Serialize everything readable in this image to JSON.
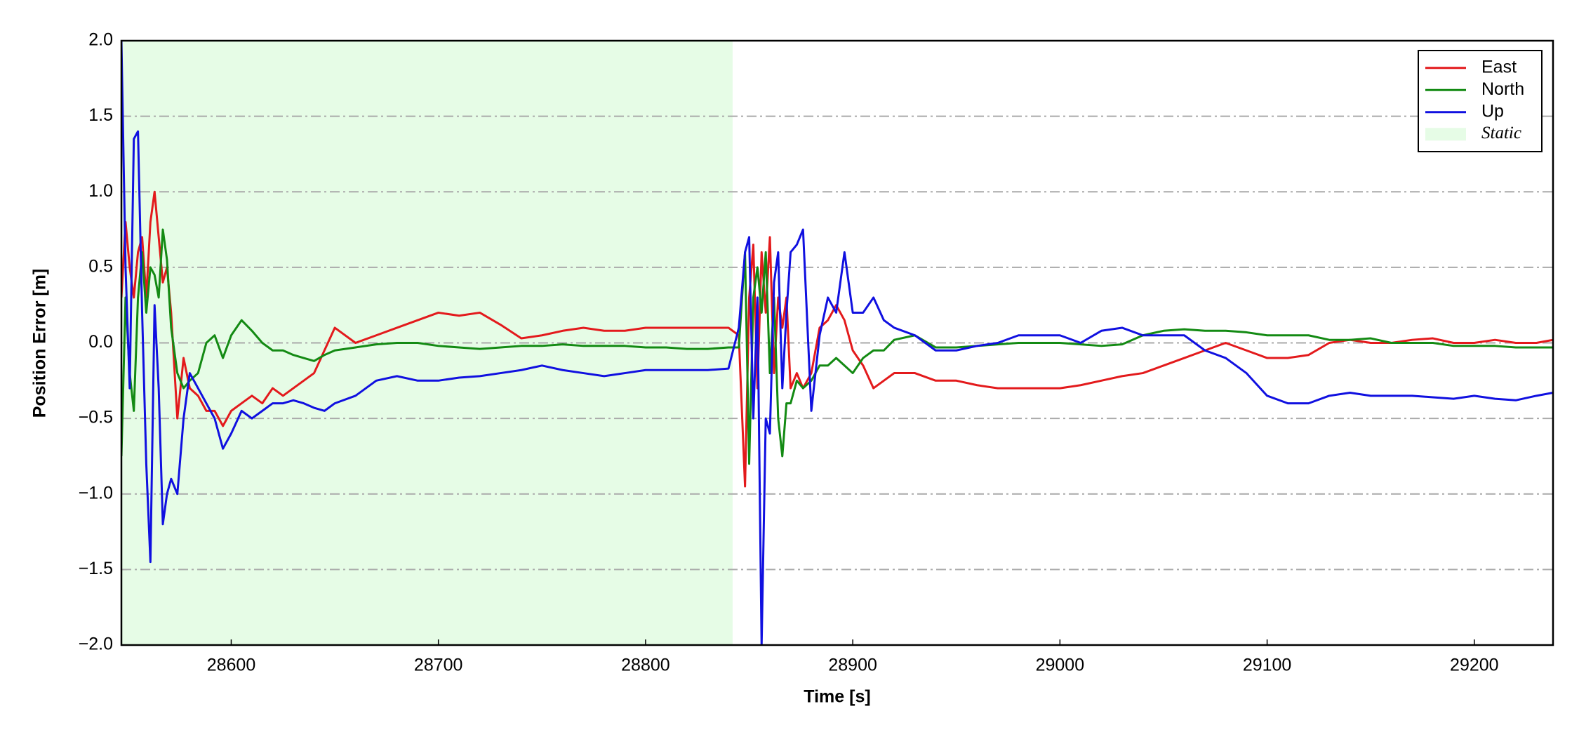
{
  "chart_data": {
    "type": "line",
    "x_label": "Time [s]",
    "y_label": "Position Error [m]",
    "xlim": [
      28547,
      29238
    ],
    "ylim": [
      -2,
      2
    ],
    "xticks": [
      28600,
      28700,
      28800,
      28900,
      29000,
      29100,
      29200
    ],
    "yticks": [
      {
        "value": -2,
        "label": "−2.0"
      },
      {
        "value": -1.5,
        "label": "−1.5"
      },
      {
        "value": -1,
        "label": "−1.0"
      },
      {
        "value": -0.5,
        "label": "−0.5"
      },
      {
        "value": 0,
        "label": "0.0"
      },
      {
        "value": 0.5,
        "label": "0.5"
      },
      {
        "value": 1,
        "label": "1.0"
      },
      {
        "value": 1.5,
        "label": "1.5"
      },
      {
        "value": 2,
        "label": "2.0"
      }
    ],
    "grid": "y",
    "legend": "upper right",
    "spans": [
      {
        "name": "Static",
        "start": 28547,
        "end": 28842,
        "color": "#e6fce6"
      }
    ],
    "x": [
      28547,
      28549,
      28551,
      28553,
      28555,
      28557,
      28559,
      28561,
      28563,
      28565,
      28567,
      28569,
      28571,
      28574,
      28577,
      28580,
      28584,
      28588,
      28592,
      28596,
      28600,
      28605,
      28610,
      28615,
      28620,
      28625,
      28630,
      28635,
      28640,
      28645,
      28650,
      28660,
      28670,
      28680,
      28690,
      28700,
      28710,
      28720,
      28730,
      28740,
      28750,
      28760,
      28770,
      28780,
      28790,
      28800,
      28810,
      28820,
      28830,
      28840,
      28845,
      28848,
      28850,
      28852,
      28854,
      28856,
      28858,
      28860,
      28862,
      28864,
      28866,
      28868,
      28870,
      28873,
      28876,
      28880,
      28884,
      28888,
      28892,
      28896,
      28900,
      28905,
      28910,
      28915,
      28920,
      28930,
      28940,
      28950,
      28960,
      28970,
      28980,
      28990,
      29000,
      29010,
      29020,
      29030,
      29040,
      29050,
      29060,
      29070,
      29080,
      29090,
      29100,
      29110,
      29120,
      29130,
      29140,
      29150,
      29160,
      29170,
      29180,
      29190,
      29200,
      29210,
      29220,
      29230,
      29238
    ],
    "series": [
      {
        "name": "East",
        "color": "#e31a1c",
        "values": [
          0.3,
          0.8,
          0.5,
          0.3,
          0.6,
          0.7,
          0.3,
          0.8,
          1.0,
          0.7,
          0.4,
          0.5,
          0.2,
          -0.5,
          -0.1,
          -0.3,
          -0.35,
          -0.45,
          -0.45,
          -0.55,
          -0.45,
          -0.4,
          -0.35,
          -0.4,
          -0.3,
          -0.35,
          -0.3,
          -0.25,
          -0.2,
          -0.05,
          0.1,
          0.0,
          0.05,
          0.1,
          0.15,
          0.2,
          0.18,
          0.2,
          0.12,
          0.03,
          0.05,
          0.08,
          0.1,
          0.08,
          0.08,
          0.1,
          0.1,
          0.1,
          0.1,
          0.1,
          0.05,
          -0.95,
          0.3,
          0.65,
          -0.3,
          0.6,
          0.2,
          0.7,
          -0.2,
          0.3,
          0.1,
          0.3,
          -0.3,
          -0.2,
          -0.3,
          -0.2,
          0.1,
          0.15,
          0.25,
          0.15,
          -0.05,
          -0.15,
          -0.3,
          -0.25,
          -0.2,
          -0.2,
          -0.25,
          -0.25,
          -0.28,
          -0.3,
          -0.3,
          -0.3,
          -0.3,
          -0.28,
          -0.25,
          -0.22,
          -0.2,
          -0.15,
          -0.1,
          -0.05,
          0.0,
          -0.05,
          -0.1,
          -0.1,
          -0.08,
          0.0,
          0.02,
          0.0,
          0.0,
          0.02,
          0.03,
          0.0,
          0.0,
          0.02,
          0.0,
          0.0,
          0.02
        ]
      },
      {
        "name": "North",
        "color": "#138a13",
        "values": [
          -0.75,
          0.3,
          -0.2,
          -0.45,
          0.3,
          0.6,
          0.2,
          0.5,
          0.45,
          0.3,
          0.75,
          0.55,
          0.1,
          -0.2,
          -0.3,
          -0.25,
          -0.2,
          0.0,
          0.05,
          -0.1,
          0.05,
          0.15,
          0.08,
          0.0,
          -0.05,
          -0.05,
          -0.08,
          -0.1,
          -0.12,
          -0.08,
          -0.05,
          -0.03,
          -0.01,
          0.0,
          0.0,
          -0.02,
          -0.03,
          -0.04,
          -0.03,
          -0.02,
          -0.02,
          -0.01,
          -0.02,
          -0.02,
          -0.02,
          -0.03,
          -0.03,
          -0.04,
          -0.04,
          -0.03,
          -0.03,
          0.6,
          -0.8,
          0.3,
          0.5,
          0.2,
          0.6,
          -0.2,
          0.3,
          -0.5,
          -0.75,
          -0.4,
          -0.4,
          -0.25,
          -0.3,
          -0.25,
          -0.15,
          -0.15,
          -0.1,
          -0.15,
          -0.2,
          -0.1,
          -0.05,
          -0.05,
          0.02,
          0.05,
          -0.03,
          -0.03,
          -0.02,
          -0.01,
          0.0,
          0.0,
          0.0,
          -0.01,
          -0.02,
          -0.01,
          0.05,
          0.08,
          0.09,
          0.08,
          0.08,
          0.07,
          0.05,
          0.05,
          0.05,
          0.02,
          0.02,
          0.03,
          0.0,
          0.0,
          0.0,
          -0.02,
          -0.02,
          -0.02,
          -0.03,
          -0.03,
          -0.03
        ]
      },
      {
        "name": "Up",
        "color": "#1010e0",
        "values": [
          2.0,
          0.5,
          -0.3,
          1.35,
          1.4,
          0.2,
          -0.8,
          -1.45,
          0.25,
          -0.3,
          -1.2,
          -1.0,
          -0.9,
          -1.0,
          -0.5,
          -0.2,
          -0.3,
          -0.4,
          -0.5,
          -0.7,
          -0.6,
          -0.45,
          -0.5,
          -0.45,
          -0.4,
          -0.4,
          -0.38,
          -0.4,
          -0.43,
          -0.45,
          -0.4,
          -0.35,
          -0.25,
          -0.22,
          -0.25,
          -0.25,
          -0.23,
          -0.22,
          -0.2,
          -0.18,
          -0.15,
          -0.18,
          -0.2,
          -0.22,
          -0.2,
          -0.18,
          -0.18,
          -0.18,
          -0.18,
          -0.17,
          0.1,
          0.6,
          0.7,
          -0.5,
          0.3,
          -2.0,
          -0.5,
          -0.6,
          0.4,
          0.6,
          -0.3,
          0.2,
          0.6,
          0.65,
          0.75,
          -0.45,
          0.05,
          0.3,
          0.2,
          0.6,
          0.2,
          0.2,
          0.3,
          0.15,
          0.1,
          0.05,
          -0.05,
          -0.05,
          -0.02,
          0.0,
          0.05,
          0.05,
          0.05,
          0.0,
          0.08,
          0.1,
          0.05,
          0.05,
          0.05,
          -0.05,
          -0.1,
          -0.2,
          -0.35,
          -0.4,
          -0.4,
          -0.35,
          -0.33,
          -0.35,
          -0.35,
          -0.35,
          -0.36,
          -0.37,
          -0.35,
          -0.37,
          -0.38,
          -0.35,
          -0.33
        ]
      }
    ]
  }
}
